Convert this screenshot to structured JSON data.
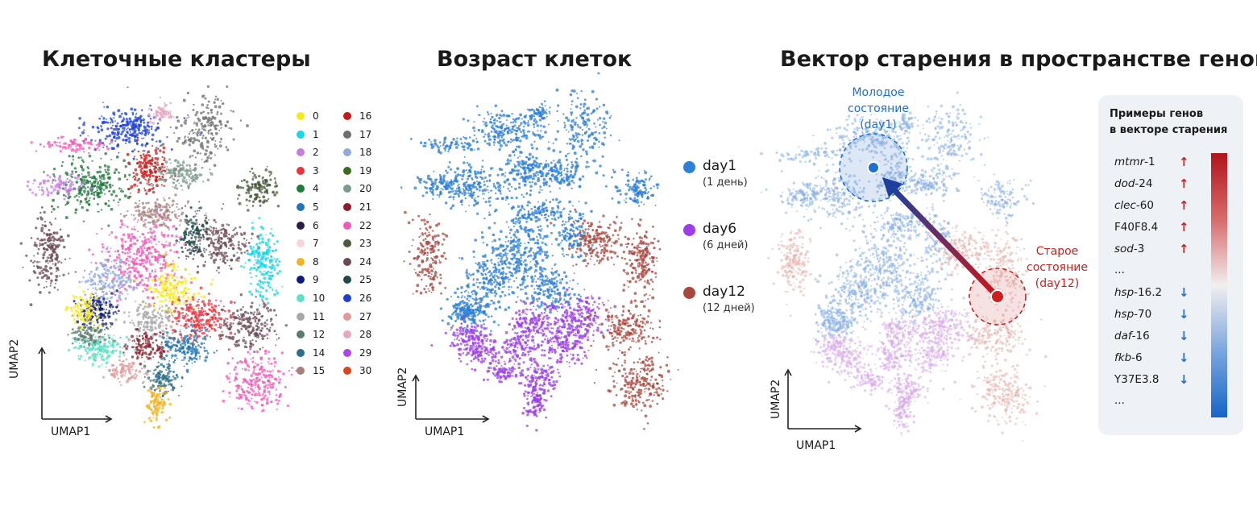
{
  "titles": {
    "clusters": "Клеточные кластеры",
    "age": "Возраст клеток",
    "vector": "Вектор старения в пространстве генов"
  },
  "axes": {
    "x": "UMAP1",
    "y": "UMAP2"
  },
  "cluster_legend": [
    {
      "label": "0",
      "color": "#f7ea1a"
    },
    {
      "label": "1",
      "color": "#19d6e6"
    },
    {
      "label": "2",
      "color": "#c77de0"
    },
    {
      "label": "3",
      "color": "#e8343f"
    },
    {
      "label": "4",
      "color": "#1f7a3d"
    },
    {
      "label": "5",
      "color": "#2375b3"
    },
    {
      "label": "6",
      "color": "#2b1d44"
    },
    {
      "label": "7",
      "color": "#f8d5d8"
    },
    {
      "label": "8",
      "color": "#f0b429"
    },
    {
      "label": "9",
      "color": "#0d1b7a"
    },
    {
      "label": "10",
      "color": "#5fe0c6"
    },
    {
      "label": "11",
      "color": "#a8a8a8"
    },
    {
      "label": "12",
      "color": "#5c7a6e"
    },
    {
      "label": "14",
      "color": "#2f6f86"
    },
    {
      "label": "15",
      "color": "#a88080"
    },
    {
      "label": "16",
      "color": "#c81818"
    },
    {
      "label": "17",
      "color": "#6e6e6e"
    },
    {
      "label": "18",
      "color": "#8fa8dd"
    },
    {
      "label": "19",
      "color": "#3d6b1e"
    },
    {
      "label": "20",
      "color": "#7c9a8c"
    },
    {
      "label": "21",
      "color": "#8a1c2c"
    },
    {
      "label": "22",
      "color": "#f25ab8"
    },
    {
      "label": "23",
      "color": "#4a5a3a"
    },
    {
      "label": "24",
      "color": "#6b4a55"
    },
    {
      "label": "25",
      "color": "#1d4a4a"
    },
    {
      "label": "26",
      "color": "#1c3fd6"
    },
    {
      "label": "27",
      "color": "#e09a9a"
    },
    {
      "label": "28",
      "color": "#e8a5c2"
    },
    {
      "label": "29",
      "color": "#a946e8"
    },
    {
      "label": "30",
      "color": "#e0431c"
    }
  ],
  "age_legend": [
    {
      "label": "day1",
      "sub": "(1 день)",
      "color": "#2e7fd6"
    },
    {
      "label": "day6",
      "sub": "(6 дней)",
      "color": "#9b3ee6"
    },
    {
      "label": "day12",
      "sub": "(12 дней)",
      "color": "#a8473d"
    }
  ],
  "annotations": {
    "young": [
      "Молодое",
      "состояние",
      "(day1)"
    ],
    "old": [
      "Старое",
      "состояние",
      "(day12)"
    ],
    "young_color": "#1f6fd0",
    "old_color": "#cc1f1f"
  },
  "gene_box": {
    "title": [
      "Примеры генов",
      "в векторе старения"
    ],
    "up_genes": [
      {
        "italic": "mtmr",
        "rest": "-1"
      },
      {
        "italic": "dod",
        "rest": "-24"
      },
      {
        "italic": "clec",
        "rest": "-60"
      },
      {
        "italic": "",
        "rest": "F40F8.4"
      },
      {
        "italic": "sod",
        "rest": "-3"
      }
    ],
    "down_genes": [
      {
        "italic": "hsp",
        "rest": "-16.2"
      },
      {
        "italic": "hsp",
        "rest": "-70"
      },
      {
        "italic": "daf",
        "rest": "-16"
      },
      {
        "italic": "fkb",
        "rest": "-6"
      },
      {
        "italic": "",
        "rest": "Y37E3.8"
      }
    ],
    "ellipsis": "...",
    "up_arrow": "↑",
    "down_arrow": "↓",
    "up_color": "#cc1f1f",
    "down_color": "#1f6fd0"
  }
}
